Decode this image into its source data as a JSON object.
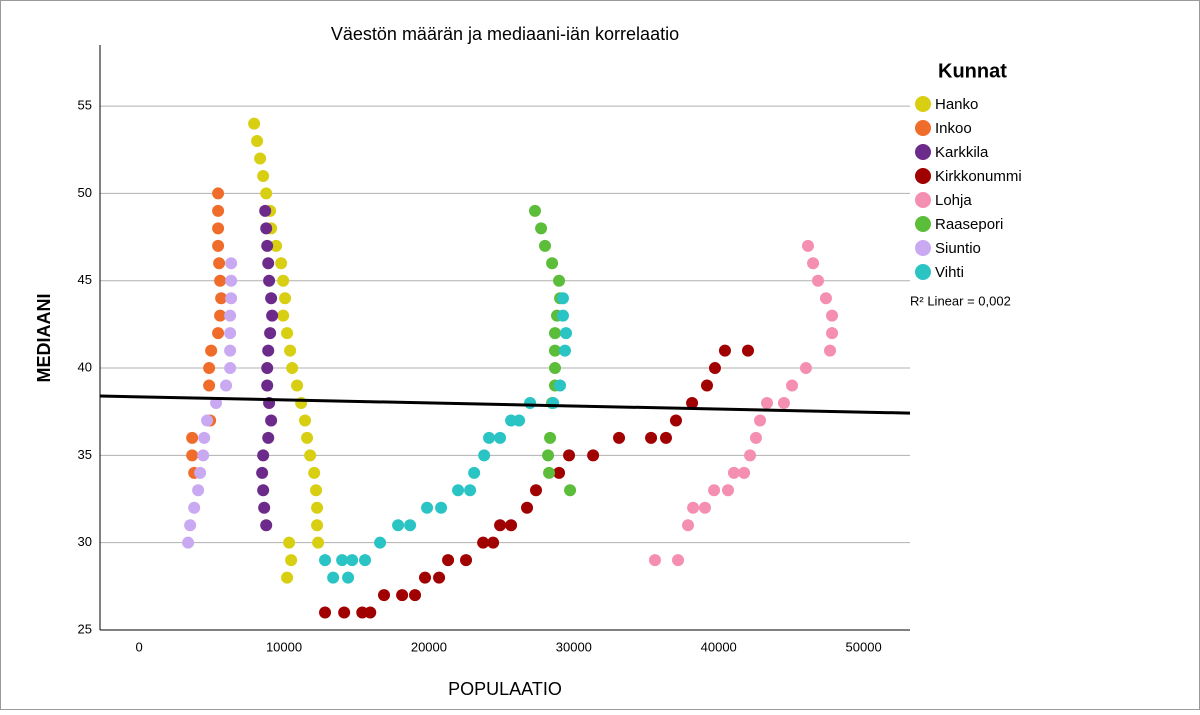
{
  "chart_data": {
    "type": "scatter",
    "title": "Väestön määrän ja mediaani-iän korrelaatio",
    "x_label": "POPULAATIO",
    "y_label": "MEDIAANI",
    "legend_title": "Kunnat",
    "legend": "right",
    "annotation": "R² Linear = 0,002",
    "grid": true,
    "xlim": [
      -2700,
      53200
    ],
    "ylim": [
      25,
      58.5
    ],
    "xticks": [
      0,
      10000,
      20000,
      30000,
      40000,
      50000
    ],
    "yticks": [
      25,
      30,
      35,
      40,
      45,
      50,
      55
    ],
    "fit_line": {
      "color": "#000000",
      "x": [
        -2700,
        53200
      ],
      "y": [
        38.4,
        37.42
      ]
    },
    "series": [
      {
        "name": "Hanko",
        "color": "#d8cf12",
        "x": [
          7935,
          8140,
          8350,
          8560,
          8770,
          9040,
          9110,
          9450,
          9800,
          9940,
          9940,
          10070,
          10210,
          10420,
          10560,
          10900,
          11180,
          11450,
          11590,
          11800,
          12080,
          12210,
          12280,
          12280,
          12350,
          10350,
          10490,
          10210
        ],
        "y": [
          54,
          53,
          52,
          51,
          50,
          49,
          48,
          47,
          46,
          45,
          43,
          44,
          42,
          41,
          40,
          39,
          38,
          37,
          36,
          35,
          34,
          33,
          32,
          31,
          30,
          30,
          29,
          28
        ]
      },
      {
        "name": "Inkoo",
        "color": "#ef6c2a",
        "x": [
          5450,
          5450,
          5450,
          5450,
          5520,
          5590,
          5660,
          5590,
          5450,
          4970,
          4830,
          4830,
          4900,
          3660,
          3660,
          3800
        ],
        "y": [
          50,
          49,
          48,
          47,
          46,
          45,
          44,
          43,
          42,
          41,
          40,
          39,
          37,
          36,
          35,
          34
        ]
      },
      {
        "name": "Karkkila",
        "color": "#6c2b8a",
        "x": [
          8700,
          8770,
          8840,
          8910,
          8970,
          9110,
          9180,
          9040,
          8910,
          8840,
          8840,
          8970,
          9110,
          8910,
          8560,
          8490,
          8560,
          8630,
          8770
        ],
        "y": [
          49,
          48,
          47,
          46,
          45,
          44,
          43,
          42,
          41,
          40,
          39,
          38,
          37,
          36,
          35,
          34,
          33,
          32,
          31
        ]
      },
      {
        "name": "Kirkkonummi",
        "color": "#a00000",
        "x": [
          12830,
          14150,
          15400,
          15950,
          16900,
          18150,
          19040,
          19730,
          20700,
          21320,
          22560,
          23740,
          24430,
          24910,
          25670,
          26770,
          27390,
          28980,
          29670,
          31330,
          33120,
          35330,
          36360,
          37050,
          38160,
          39190,
          39740,
          40430,
          42020
        ],
        "y": [
          26,
          26,
          26,
          26,
          27,
          27,
          27,
          28,
          28,
          29,
          29,
          30,
          30,
          31,
          31,
          32,
          33,
          34,
          35,
          35,
          36,
          36,
          36,
          37,
          38,
          39,
          40,
          41,
          41
        ]
      },
      {
        "name": "Lohja",
        "color": "#f48fb1",
        "x": [
          35600,
          37190,
          37880,
          38230,
          39050,
          39680,
          40640,
          41050,
          41750,
          42160,
          42570,
          42850,
          43330,
          44500,
          45060,
          46020,
          47680,
          47820,
          47820,
          47400,
          46850,
          46510,
          46160
        ],
        "y": [
          29,
          29,
          31,
          32,
          32,
          33,
          33,
          34,
          34,
          35,
          36,
          37,
          38,
          38,
          39,
          40,
          41,
          42,
          43,
          44,
          45,
          46,
          47
        ]
      },
      {
        "name": "Raasepori",
        "color": "#5cbd3a",
        "x": [
          27320,
          27740,
          28010,
          28500,
          28980,
          29050,
          28840,
          28700,
          28700,
          28700,
          28700,
          28500,
          28360,
          28220,
          28290,
          29740
        ],
        "y": [
          49,
          48,
          47,
          46,
          45,
          44,
          43,
          42,
          41,
          40,
          39,
          38,
          36,
          35,
          34,
          33
        ]
      },
      {
        "name": "Siuntio",
        "color": "#c9a9f1",
        "x": [
          3380,
          3520,
          3800,
          4070,
          4210,
          4420,
          4490,
          4690,
          5310,
          6000,
          6280,
          6280,
          6280,
          6280,
          6350,
          6350,
          6350
        ],
        "y": [
          30,
          31,
          32,
          33,
          34,
          35,
          36,
          37,
          38,
          39,
          40,
          41,
          42,
          43,
          44,
          45,
          46
        ]
      },
      {
        "name": "Vihti",
        "color": "#2bc4c4",
        "x": [
          12830,
          14010,
          14700,
          15590,
          13390,
          14420,
          16630,
          17870,
          18700,
          19870,
          20840,
          22010,
          22840,
          23120,
          23810,
          24150,
          24910,
          25670,
          26220,
          26980,
          28570,
          29050,
          29390,
          29460,
          29250,
          29250
        ],
        "y": [
          29,
          29,
          29,
          29,
          28,
          28,
          30,
          31,
          31,
          32,
          32,
          33,
          33,
          34,
          35,
          36,
          36,
          37,
          37,
          38,
          38,
          39,
          41,
          42,
          43,
          44
        ]
      }
    ]
  }
}
